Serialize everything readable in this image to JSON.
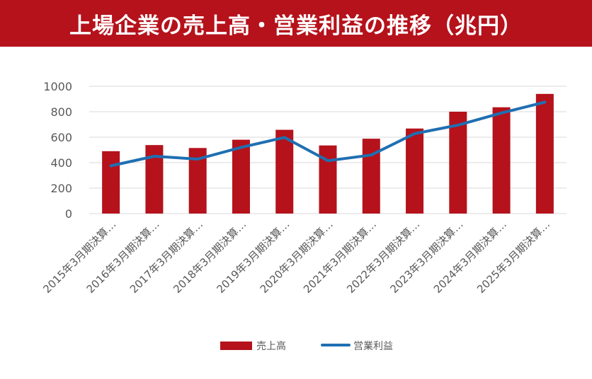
{
  "header": {
    "title": "上場企業の売上高・営業利益の推移（兆円）"
  },
  "colors": {
    "header_bg": "#b5121b",
    "bar": "#b5121b",
    "line": "#1f6fb2",
    "grid": "#d9d9d9",
    "text": "#595959"
  },
  "chart_data": {
    "type": "bar",
    "categories": [
      "2015年3月期決算…",
      "2016年3月期決算…",
      "2017年3月期決算…",
      "2018年3月期決算…",
      "2019年3月期決算…",
      "2020年3月期決算…",
      "2021年3月期決算…",
      "2022年3月期決算…",
      "2023年3月期決算…",
      "2024年3月期決算…",
      "2025年3月期決算…"
    ],
    "series": [
      {
        "name": "売上高",
        "type": "bar",
        "values": [
          490,
          538,
          515,
          580,
          658,
          535,
          588,
          668,
          800,
          835,
          940
        ]
      },
      {
        "name": "営業利益",
        "type": "line",
        "values": [
          375,
          450,
          428,
          520,
          598,
          415,
          460,
          628,
          695,
          790,
          875
        ]
      }
    ],
    "yticks": [
      0,
      200,
      400,
      600,
      800,
      1000
    ],
    "ylim": [
      0,
      1000
    ],
    "grid": true,
    "legend": "bottom"
  }
}
